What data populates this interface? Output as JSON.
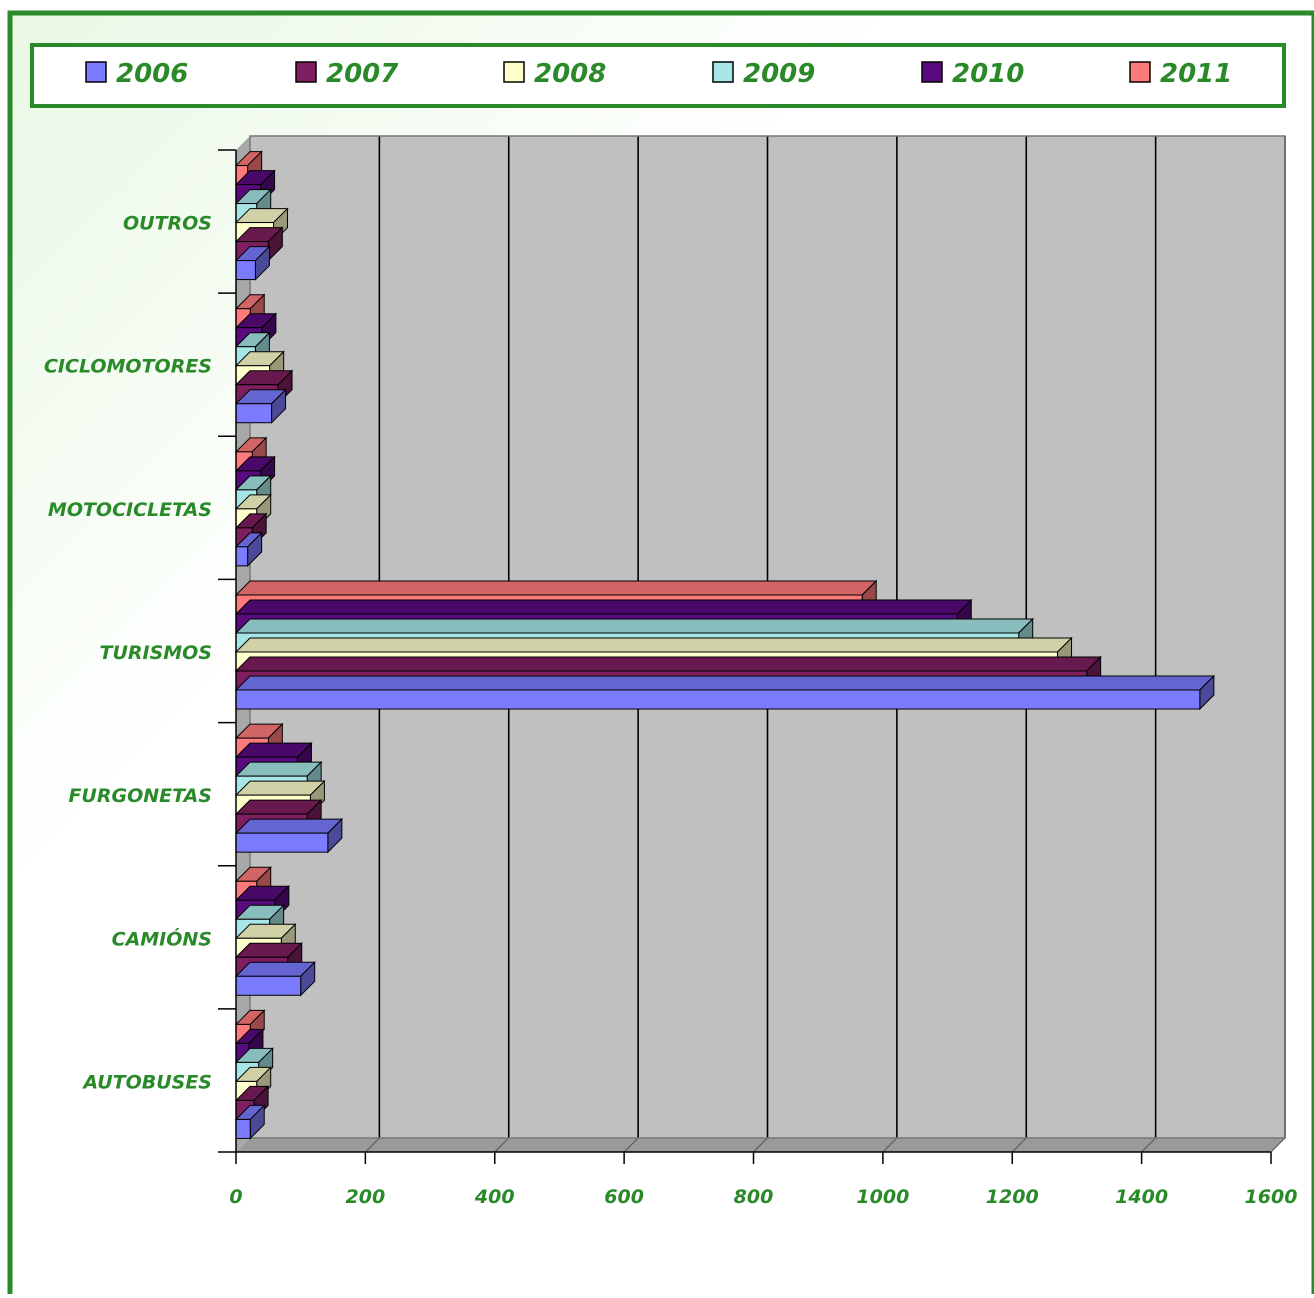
{
  "colors": {
    "frame": "#2a8a2a",
    "label": "#2a8a2a",
    "plot_bg": "#c0c0c0",
    "wall": "#a8a8a8",
    "floor": "#9a9a9a",
    "gridline": "#000000"
  },
  "chart_data": {
    "type": "bar",
    "orientation": "horizontal",
    "three_d": true,
    "title": "",
    "xlabel": "",
    "ylabel": "",
    "xlim": [
      0,
      1600
    ],
    "x_ticks": [
      "0",
      "200",
      "400",
      "600",
      "800",
      "1000",
      "1200",
      "1400",
      "1600"
    ],
    "grid": true,
    "legend_position": "top",
    "categories": [
      "AUTOBUSES",
      "CAMIÓNS",
      "FURGONETAS",
      "TURISMOS",
      "MOTOCICLETAS",
      "CICLOMOTORES",
      "OUTROS"
    ],
    "series": [
      {
        "name": "2006",
        "color": "#7b7bff",
        "values": [
          22,
          100,
          142,
          1490,
          18,
          55,
          30
        ]
      },
      {
        "name": "2007",
        "color": "#7f1f5f",
        "values": [
          28,
          80,
          110,
          1315,
          25,
          65,
          50
        ]
      },
      {
        "name": "2008",
        "color": "#ffffcc",
        "values": [
          32,
          70,
          115,
          1270,
          32,
          52,
          58
        ]
      },
      {
        "name": "2009",
        "color": "#a6e6e6",
        "values": [
          35,
          52,
          110,
          1210,
          32,
          30,
          32
        ]
      },
      {
        "name": "2010",
        "color": "#5a0a7f",
        "values": [
          20,
          60,
          95,
          1115,
          38,
          40,
          38
        ]
      },
      {
        "name": "2011",
        "color": "#ff7a7a",
        "values": [
          22,
          32,
          50,
          968,
          25,
          22,
          18
        ]
      }
    ]
  }
}
